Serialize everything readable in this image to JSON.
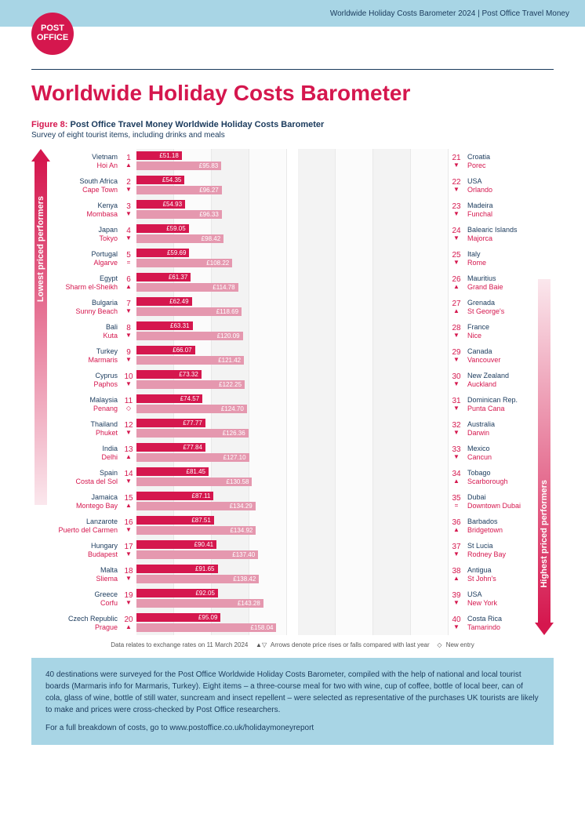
{
  "header": {
    "text": "Worldwide Holiday Costs Barometer 2024  |  Post Office Travel Money"
  },
  "logo": {
    "line1": "POST",
    "line2": "OFFICE"
  },
  "title": "Worldwide Holiday Costs Barometer",
  "figure": {
    "number": "Figure 8:",
    "title": "Post Office Travel Money Worldwide Holiday Costs Barometer",
    "subtitle": "Survey of eight tourist items, including drinks and meals"
  },
  "arrows": {
    "left_label": "Lowest priced performers",
    "right_label": "Highest priced performers"
  },
  "chart": {
    "max_value": 170,
    "bar_color_primary": "#d5174e",
    "bar_color_secondary": "#e598af",
    "left": [
      {
        "rank": 1,
        "country": "Vietnam",
        "city": "Hoi An",
        "trend": "▲",
        "v1": "£51.18",
        "v2": "£95.83",
        "n1": 51.18,
        "n2": 95.83
      },
      {
        "rank": 2,
        "country": "South Africa",
        "city": "Cape Town",
        "trend": "▼",
        "v1": "£54.35",
        "v2": "£96.27",
        "n1": 54.35,
        "n2": 96.27
      },
      {
        "rank": 3,
        "country": "Kenya",
        "city": "Mombasa",
        "trend": "▼",
        "v1": "£54.93",
        "v2": "£96.33",
        "n1": 54.93,
        "n2": 96.33
      },
      {
        "rank": 4,
        "country": "Japan",
        "city": "Tokyo",
        "trend": "▼",
        "v1": "£59.05",
        "v2": "£98.42",
        "n1": 59.05,
        "n2": 98.42
      },
      {
        "rank": 5,
        "country": "Portugal",
        "city": "Algarve",
        "trend": "=",
        "v1": "£59.69",
        "v2": "£108.22",
        "n1": 59.69,
        "n2": 108.22
      },
      {
        "rank": 6,
        "country": "Egypt",
        "city": "Sharm el-Sheikh",
        "trend": "▲",
        "v1": "£61.37",
        "v2": "£114.78",
        "n1": 61.37,
        "n2": 114.78
      },
      {
        "rank": 7,
        "country": "Bulgaria",
        "city": "Sunny Beach",
        "trend": "▼",
        "v1": "£62.49",
        "v2": "£118.69",
        "n1": 62.49,
        "n2": 118.69
      },
      {
        "rank": 8,
        "country": "Bali",
        "city": "Kuta",
        "trend": "▼",
        "v1": "£63.31",
        "v2": "£120.09",
        "n1": 63.31,
        "n2": 120.09
      },
      {
        "rank": 9,
        "country": "Turkey",
        "city": "Marmaris",
        "trend": "▼",
        "v1": "£66.07",
        "v2": "£121.42",
        "n1": 66.07,
        "n2": 121.42
      },
      {
        "rank": 10,
        "country": "Cyprus",
        "city": "Paphos",
        "trend": "▼",
        "v1": "£73.32",
        "v2": "£122.25",
        "n1": 73.32,
        "n2": 122.25
      },
      {
        "rank": 11,
        "country": "Malaysia",
        "city": "Penang",
        "trend": "◇",
        "v1": "£74.57",
        "v2": "£124.70",
        "n1": 74.57,
        "n2": 124.7
      },
      {
        "rank": 12,
        "country": "Thailand",
        "city": "Phuket",
        "trend": "▼",
        "v1": "£77.77",
        "v2": "£126.36",
        "n1": 77.77,
        "n2": 126.36
      },
      {
        "rank": 13,
        "country": "India",
        "city": "Delhi",
        "trend": "▲",
        "v1": "£77.84",
        "v2": "£127.10",
        "n1": 77.84,
        "n2": 127.1
      },
      {
        "rank": 14,
        "country": "Spain",
        "city": "Costa del Sol",
        "trend": "▼",
        "v1": "£81.45",
        "v2": "£130.58",
        "n1": 81.45,
        "n2": 130.58
      },
      {
        "rank": 15,
        "country": "Jamaica",
        "city": "Montego Bay",
        "trend": "▲",
        "v1": "£87.11",
        "v2": "£134.29",
        "n1": 87.11,
        "n2": 134.29
      },
      {
        "rank": 16,
        "country": "Lanzarote",
        "city": "Puerto del Carmen",
        "trend": "▼",
        "v1": "£87.51",
        "v2": "£134.92",
        "n1": 87.51,
        "n2": 134.92
      },
      {
        "rank": 17,
        "country": "Hungary",
        "city": "Budapest",
        "trend": "▼",
        "v1": "£90.41",
        "v2": "£137.40",
        "n1": 90.41,
        "n2": 137.4
      },
      {
        "rank": 18,
        "country": "Malta",
        "city": "Sliema",
        "trend": "▼",
        "v1": "£91.65",
        "v2": "£138.42",
        "n1": 91.65,
        "n2": 138.42
      },
      {
        "rank": 19,
        "country": "Greece",
        "city": "Corfu",
        "trend": "▼",
        "v1": "£92.05",
        "v2": "£143.28",
        "n1": 92.05,
        "n2": 143.28
      },
      {
        "rank": 20,
        "country": "Czech Republic",
        "city": "Prague",
        "trend": "▲",
        "v1": "£95.09",
        "v2": "£158.04",
        "n1": 95.09,
        "n2": 158.04
      }
    ],
    "right": [
      {
        "rank": 21,
        "country": "Croatia",
        "city": "Porec",
        "trend": "▼"
      },
      {
        "rank": 22,
        "country": "USA",
        "city": "Orlando",
        "trend": "▼"
      },
      {
        "rank": 23,
        "country": "Madeira",
        "city": "Funchal",
        "trend": "▼"
      },
      {
        "rank": 24,
        "country": "Balearic Islands",
        "city": "Majorca",
        "trend": "▼"
      },
      {
        "rank": 25,
        "country": "Italy",
        "city": "Rome",
        "trend": "▼"
      },
      {
        "rank": 26,
        "country": "Mauritius",
        "city": "Grand Baie",
        "trend": "▲"
      },
      {
        "rank": 27,
        "country": "Grenada",
        "city": "St George's",
        "trend": "▲"
      },
      {
        "rank": 28,
        "country": "France",
        "city": "Nice",
        "trend": "▼"
      },
      {
        "rank": 29,
        "country": "Canada",
        "city": "Vancouver",
        "trend": "▼"
      },
      {
        "rank": 30,
        "country": "New Zealand",
        "city": "Auckland",
        "trend": "▼"
      },
      {
        "rank": 31,
        "country": "Dominican Rep.",
        "city": "Punta Cana",
        "trend": "▼"
      },
      {
        "rank": 32,
        "country": "Australia",
        "city": "Darwin",
        "trend": "▼"
      },
      {
        "rank": 33,
        "country": "Mexico",
        "city": "Cancun",
        "trend": "▼"
      },
      {
        "rank": 34,
        "country": "Tobago",
        "city": "Scarborough",
        "trend": "▲"
      },
      {
        "rank": 35,
        "country": "Dubai",
        "city": "Downtown Dubai",
        "trend": "="
      },
      {
        "rank": 36,
        "country": "Barbados",
        "city": "Bridgetown",
        "trend": "▲"
      },
      {
        "rank": 37,
        "country": "St Lucia",
        "city": "Rodney Bay",
        "trend": "▼"
      },
      {
        "rank": 38,
        "country": "Antigua",
        "city": "St John's",
        "trend": "▲"
      },
      {
        "rank": 39,
        "country": "USA",
        "city": "New York",
        "trend": "▼"
      },
      {
        "rank": 40,
        "country": "Costa Rica",
        "city": "Tamarindo",
        "trend": "▼"
      }
    ]
  },
  "footnote": {
    "date": "Data relates to exchange rates on 11 March 2024",
    "arrows": "Arrows denote price rises or falls compared with last year",
    "new": "New entry"
  },
  "infobox": {
    "p1": "40 destinations were surveyed for the Post Office Worldwide Holiday Costs Barometer, compiled with the help of national and local tourist boards (Marmaris info for Marmaris, Turkey). Eight items – a three-course meal for two with wine, cup of coffee, bottle of local beer, can of cola, glass of wine, bottle of still water, suncream and insect repellent – were selected as representative of the purchases UK tourists are likely to make and prices were cross-checked by Post Office researchers.",
    "p2": "For a full breakdown of costs, go to www.postoffice.co.uk/holidaymoneyreport"
  }
}
